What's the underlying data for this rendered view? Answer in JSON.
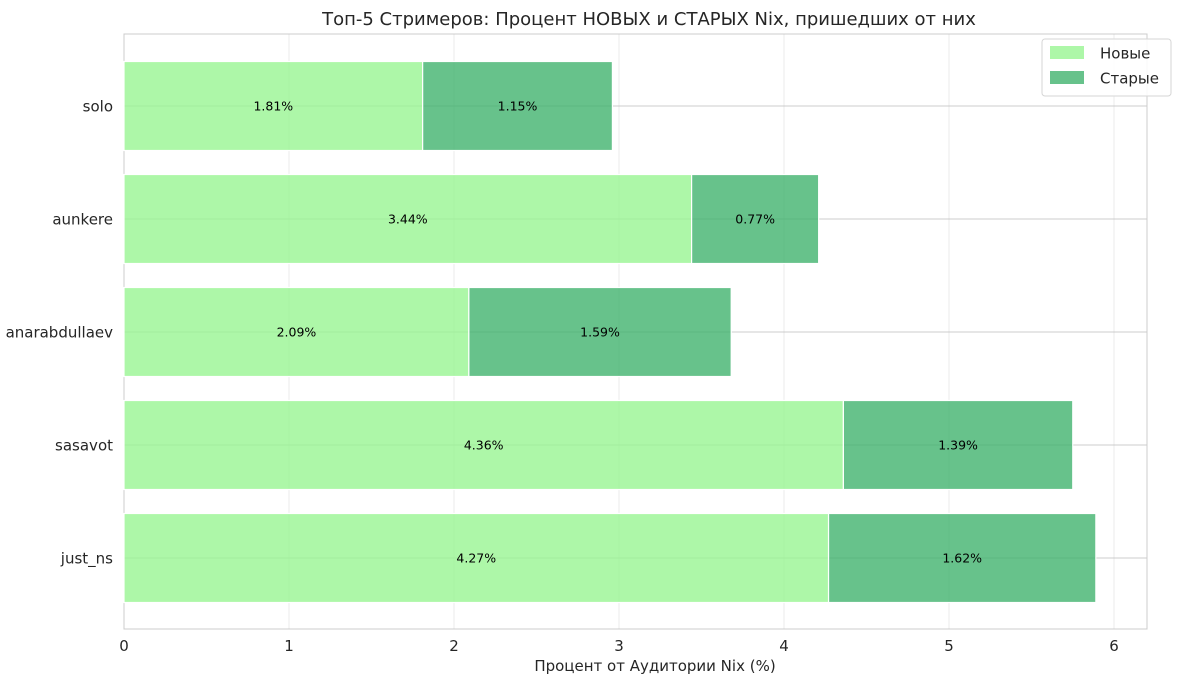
{
  "chart_data": {
    "type": "bar",
    "orientation": "horizontal",
    "stacked": true,
    "title": "Топ-5 Стримеров: Процент НОВЫХ и СТАРЫХ Nix, пришедших от них",
    "xlabel": "Процент от Аудитории Nix (%)",
    "ylabel": "",
    "xlim": [
      0,
      6.2
    ],
    "xticks": [
      "0",
      "1",
      "2",
      "3",
      "4",
      "5",
      "6"
    ],
    "categories": [
      "solo",
      "aunkere",
      "anarabdullaev",
      "sasavot",
      "just_ns"
    ],
    "series": [
      {
        "name": "Новые",
        "color": "#98f592",
        "values": [
          1.81,
          3.44,
          2.09,
          4.36,
          4.27
        ],
        "labels": [
          "1.81%",
          "3.44%",
          "2.09%",
          "4.36%",
          "4.27%"
        ]
      },
      {
        "name": "Старые",
        "color": "#41b36e",
        "values": [
          1.15,
          0.77,
          1.59,
          1.39,
          1.62
        ],
        "labels": [
          "1.15%",
          "0.77%",
          "1.59%",
          "1.39%",
          "1.62%"
        ]
      }
    ],
    "grid": true,
    "legend_position": "top-right"
  }
}
